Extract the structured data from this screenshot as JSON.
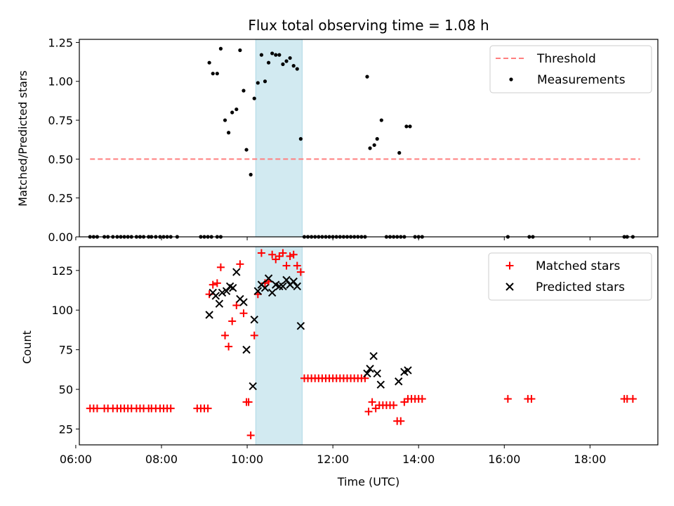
{
  "chart_data": [
    {
      "type": "scatter",
      "title": "Flux total observing time = 1.08 h",
      "ylabel": "Matched/Predicted stars",
      "xlabel": "",
      "xlim": [
        "06:05",
        "19:35"
      ],
      "ylim": [
        0,
        1.27
      ],
      "y_ticks": [
        "0.00",
        "0.25",
        "0.50",
        "0.75",
        "1.00",
        "1.25"
      ],
      "legend_position": "top-right",
      "shaded_interval": [
        "10:12",
        "11:17"
      ],
      "shade_color": "#add8e6",
      "legend": [
        "Threshold",
        "Measurements"
      ],
      "threshold": {
        "name": "Threshold",
        "y": 0.5,
        "x": [
          "06:20",
          "19:10"
        ],
        "color": "#ff7f7f"
      },
      "series": [
        {
          "name": "Measurements",
          "color": "#000000",
          "points": [
            [
              "06:20",
              0
            ],
            [
              "06:25",
              0
            ],
            [
              "06:30",
              0
            ],
            [
              "06:40",
              0
            ],
            [
              "06:45",
              0
            ],
            [
              "06:52",
              0
            ],
            [
              "06:58",
              0
            ],
            [
              "07:03",
              0
            ],
            [
              "07:08",
              0
            ],
            [
              "07:13",
              0
            ],
            [
              "07:18",
              0
            ],
            [
              "07:25",
              0
            ],
            [
              "07:30",
              0
            ],
            [
              "07:35",
              0
            ],
            [
              "07:42",
              0
            ],
            [
              "07:46",
              0
            ],
            [
              "07:52",
              0
            ],
            [
              "07:58",
              0
            ],
            [
              "08:03",
              0
            ],
            [
              "08:08",
              0
            ],
            [
              "08:13",
              0
            ],
            [
              "08:22",
              0
            ],
            [
              "08:55",
              0
            ],
            [
              "09:00",
              0
            ],
            [
              "09:05",
              0
            ],
            [
              "09:10",
              0
            ],
            [
              "09:18",
              0
            ],
            [
              "09:23",
              0
            ],
            [
              "09:07",
              1.12
            ],
            [
              "09:12",
              1.05
            ],
            [
              "09:18",
              1.05
            ],
            [
              "09:23",
              1.21
            ],
            [
              "09:29",
              0.75
            ],
            [
              "09:34",
              0.67
            ],
            [
              "09:39",
              0.8
            ],
            [
              "09:45",
              0.82
            ],
            [
              "09:50",
              1.2
            ],
            [
              "09:55",
              0.94
            ],
            [
              "09:59",
              0.56
            ],
            [
              "10:05",
              0.4
            ],
            [
              "10:10",
              0.89
            ],
            [
              "10:15",
              0.99
            ],
            [
              "10:20",
              1.17
            ],
            [
              "10:25",
              1.0
            ],
            [
              "10:30",
              1.12
            ],
            [
              "10:35",
              1.18
            ],
            [
              "10:40",
              1.17
            ],
            [
              "10:45",
              1.17
            ],
            [
              "10:50",
              1.11
            ],
            [
              "10:55",
              1.13
            ],
            [
              "11:00",
              1.15
            ],
            [
              "11:05",
              1.1
            ],
            [
              "11:10",
              1.08
            ],
            [
              "11:15",
              0.63
            ],
            [
              "11:20",
              0
            ],
            [
              "11:25",
              0
            ],
            [
              "11:30",
              0
            ],
            [
              "11:35",
              0
            ],
            [
              "11:40",
              0
            ],
            [
              "11:45",
              0
            ],
            [
              "11:50",
              0
            ],
            [
              "11:55",
              0
            ],
            [
              "12:00",
              0
            ],
            [
              "12:05",
              0
            ],
            [
              "12:10",
              0
            ],
            [
              "12:15",
              0
            ],
            [
              "12:20",
              0
            ],
            [
              "12:25",
              0
            ],
            [
              "12:30",
              0
            ],
            [
              "12:35",
              0
            ],
            [
              "12:40",
              0
            ],
            [
              "12:45",
              0
            ],
            [
              "12:48",
              1.03
            ],
            [
              "12:52",
              0.57
            ],
            [
              "12:58",
              0.59
            ],
            [
              "13:02",
              0.63
            ],
            [
              "13:08",
              0.75
            ],
            [
              "13:15",
              0
            ],
            [
              "13:20",
              0
            ],
            [
              "13:25",
              0
            ],
            [
              "13:30",
              0
            ],
            [
              "13:35",
              0
            ],
            [
              "13:40",
              0
            ],
            [
              "13:33",
              0.54
            ],
            [
              "13:43",
              0.71
            ],
            [
              "13:48",
              0.71
            ],
            [
              "13:55",
              0
            ],
            [
              "14:00",
              0
            ],
            [
              "14:05",
              0
            ],
            [
              "16:05",
              0
            ],
            [
              "16:35",
              0
            ],
            [
              "16:40",
              0
            ],
            [
              "18:48",
              0
            ],
            [
              "18:52",
              0
            ],
            [
              "19:00",
              0
            ]
          ]
        }
      ]
    },
    {
      "type": "scatter",
      "title": "",
      "ylabel": "Count",
      "xlabel": "Time (UTC)",
      "xlim": [
        "06:05",
        "19:35"
      ],
      "ylim": [
        15,
        140
      ],
      "x_ticks": [
        "06:00",
        "08:00",
        "10:00",
        "12:00",
        "14:00",
        "16:00",
        "18:00"
      ],
      "y_ticks": [
        "25",
        "50",
        "75",
        "100",
        "125"
      ],
      "legend_position": "top-right",
      "shaded_interval": [
        "10:12",
        "11:17"
      ],
      "shade_color": "#add8e6",
      "legend": [
        "Matched stars",
        "Predicted stars"
      ],
      "series": [
        {
          "name": "Matched stars",
          "marker": "plus",
          "color": "#ff0000",
          "points": [
            [
              "06:20",
              38
            ],
            [
              "06:25",
              38
            ],
            [
              "06:30",
              38
            ],
            [
              "06:40",
              38
            ],
            [
              "06:45",
              38
            ],
            [
              "06:52",
              38
            ],
            [
              "06:58",
              38
            ],
            [
              "07:03",
              38
            ],
            [
              "07:08",
              38
            ],
            [
              "07:13",
              38
            ],
            [
              "07:18",
              38
            ],
            [
              "07:25",
              38
            ],
            [
              "07:30",
              38
            ],
            [
              "07:35",
              38
            ],
            [
              "07:42",
              38
            ],
            [
              "07:46",
              38
            ],
            [
              "07:52",
              38
            ],
            [
              "07:58",
              38
            ],
            [
              "08:03",
              38
            ],
            [
              "08:08",
              38
            ],
            [
              "08:13",
              38
            ],
            [
              "08:50",
              38
            ],
            [
              "08:55",
              38
            ],
            [
              "09:00",
              38
            ],
            [
              "09:05",
              38
            ],
            [
              "09:07",
              110
            ],
            [
              "09:12",
              116
            ],
            [
              "09:18",
              117
            ],
            [
              "09:23",
              127
            ],
            [
              "09:29",
              84
            ],
            [
              "09:34",
              77
            ],
            [
              "09:39",
              93
            ],
            [
              "09:45",
              103
            ],
            [
              "09:50",
              129
            ],
            [
              "09:55",
              98
            ],
            [
              "09:59",
              42
            ],
            [
              "10:02",
              42
            ],
            [
              "10:05",
              21
            ],
            [
              "10:10",
              84
            ],
            [
              "10:15",
              110
            ],
            [
              "10:20",
              136
            ],
            [
              "10:25",
              117
            ],
            [
              "10:30",
              118
            ],
            [
              "10:35",
              135
            ],
            [
              "10:40",
              132
            ],
            [
              "10:45",
              134
            ],
            [
              "10:50",
              136
            ],
            [
              "10:55",
              128
            ],
            [
              "11:00",
              134
            ],
            [
              "11:05",
              135
            ],
            [
              "11:10",
              128
            ],
            [
              "11:15",
              124
            ],
            [
              "11:20",
              57
            ],
            [
              "11:25",
              57
            ],
            [
              "11:30",
              57
            ],
            [
              "11:35",
              57
            ],
            [
              "11:40",
              57
            ],
            [
              "11:45",
              57
            ],
            [
              "11:50",
              57
            ],
            [
              "11:55",
              57
            ],
            [
              "12:00",
              57
            ],
            [
              "12:05",
              57
            ],
            [
              "12:10",
              57
            ],
            [
              "12:15",
              57
            ],
            [
              "12:20",
              57
            ],
            [
              "12:25",
              57
            ],
            [
              "12:30",
              57
            ],
            [
              "12:35",
              57
            ],
            [
              "12:40",
              57
            ],
            [
              "12:45",
              57
            ],
            [
              "12:50",
              36
            ],
            [
              "12:55",
              42
            ],
            [
              "13:00",
              38
            ],
            [
              "13:05",
              40
            ],
            [
              "13:10",
              40
            ],
            [
              "13:15",
              40
            ],
            [
              "13:20",
              40
            ],
            [
              "13:25",
              40
            ],
            [
              "13:30",
              30
            ],
            [
              "13:35",
              30
            ],
            [
              "13:40",
              42
            ],
            [
              "13:45",
              44
            ],
            [
              "13:50",
              44
            ],
            [
              "13:55",
              44
            ],
            [
              "14:00",
              44
            ],
            [
              "14:05",
              44
            ],
            [
              "16:05",
              44
            ],
            [
              "16:33",
              44
            ],
            [
              "16:38",
              44
            ],
            [
              "18:48",
              44
            ],
            [
              "18:52",
              44
            ],
            [
              "19:00",
              44
            ]
          ]
        },
        {
          "name": "Predicted stars",
          "marker": "x",
          "color": "#000000",
          "points": [
            [
              "09:07",
              97
            ],
            [
              "09:12",
              111
            ],
            [
              "09:16",
              109
            ],
            [
              "09:21",
              104
            ],
            [
              "09:25",
              111
            ],
            [
              "09:31",
              112
            ],
            [
              "09:36",
              115
            ],
            [
              "09:40",
              114
            ],
            [
              "09:45",
              124
            ],
            [
              "09:50",
              107
            ],
            [
              "09:55",
              105
            ],
            [
              "09:59",
              75
            ],
            [
              "10:08",
              52
            ],
            [
              "10:10",
              94
            ],
            [
              "10:15",
              112
            ],
            [
              "10:20",
              116
            ],
            [
              "10:25",
              114
            ],
            [
              "10:30",
              120
            ],
            [
              "10:35",
              111
            ],
            [
              "10:40",
              116
            ],
            [
              "10:45",
              115
            ],
            [
              "10:50",
              115
            ],
            [
              "10:55",
              119
            ],
            [
              "11:00",
              116
            ],
            [
              "11:05",
              118
            ],
            [
              "11:10",
              115
            ],
            [
              "11:15",
              90
            ],
            [
              "12:48",
              60
            ],
            [
              "12:52",
              63
            ],
            [
              "12:57",
              71
            ],
            [
              "13:02",
              60
            ],
            [
              "13:07",
              53
            ],
            [
              "13:32",
              55
            ],
            [
              "13:40",
              61
            ],
            [
              "13:45",
              62
            ]
          ]
        }
      ]
    }
  ]
}
